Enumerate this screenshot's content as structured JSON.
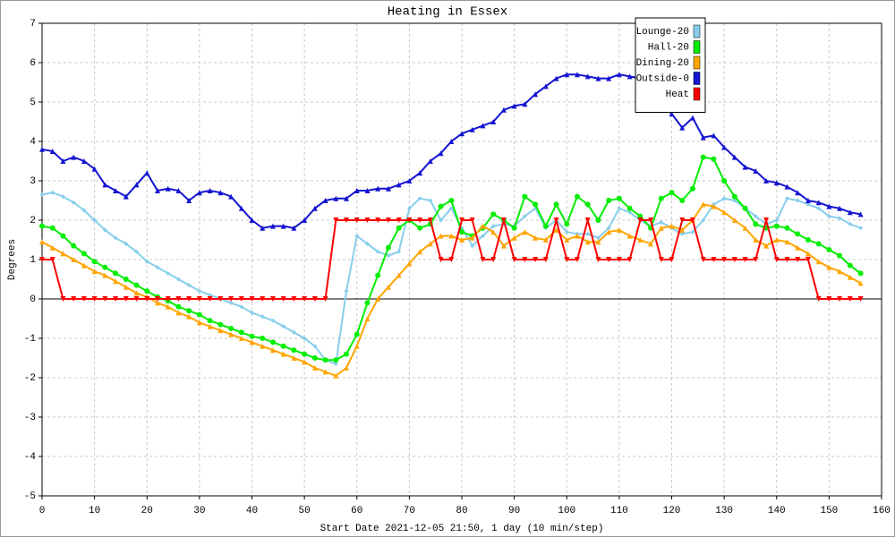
{
  "chart_data": {
    "type": "line",
    "title": "Heating in Essex",
    "x_label": "Start Date 2021-12-05 21:50, 1 day (10 min/step)",
    "y_label": "Degrees",
    "xlim": [
      0,
      160
    ],
    "xticks": [
      0,
      10,
      20,
      30,
      40,
      50,
      60,
      70,
      80,
      90,
      100,
      110,
      120,
      130,
      140,
      150,
      160
    ],
    "ylim": [
      -5,
      7
    ],
    "yticks": [
      -5,
      -4,
      -3,
      -2,
      -1,
      0,
      1,
      2,
      3,
      4,
      5,
      6,
      7
    ],
    "grid": true,
    "legend": "top-right",
    "x": [
      0,
      2,
      4,
      6,
      8,
      10,
      12,
      14,
      16,
      18,
      20,
      22,
      24,
      26,
      28,
      30,
      32,
      34,
      36,
      38,
      40,
      42,
      44,
      46,
      48,
      50,
      52,
      54,
      56,
      58,
      60,
      62,
      64,
      66,
      68,
      70,
      72,
      74,
      76,
      78,
      80,
      82,
      84,
      86,
      88,
      90,
      92,
      94,
      96,
      98,
      100,
      102,
      104,
      106,
      108,
      110,
      112,
      114,
      116,
      118,
      120,
      122,
      124,
      126,
      128,
      130,
      132,
      134,
      136,
      138,
      140,
      142,
      144,
      146,
      148,
      150,
      152,
      154,
      156
    ],
    "series": [
      {
        "name": "Lounge-20",
        "color": "#87ceeb",
        "marker": "diamond",
        "values": [
          2.65,
          2.7,
          2.6,
          2.45,
          2.25,
          2.0,
          1.75,
          1.55,
          1.4,
          1.2,
          0.95,
          0.8,
          0.65,
          0.5,
          0.35,
          0.2,
          0.1,
          0.0,
          -0.1,
          -0.2,
          -0.35,
          -0.45,
          -0.55,
          -0.7,
          -0.85,
          -1.0,
          -1.2,
          -1.55,
          -1.65,
          0.2,
          1.6,
          1.4,
          1.2,
          1.1,
          1.2,
          2.3,
          2.55,
          2.5,
          2.0,
          2.3,
          1.8,
          1.35,
          1.6,
          1.85,
          1.9,
          1.85,
          2.1,
          2.3,
          1.8,
          2.0,
          1.7,
          1.65,
          1.65,
          1.55,
          1.8,
          2.3,
          2.2,
          2.0,
          1.85,
          1.95,
          1.8,
          1.65,
          1.7,
          2.0,
          2.4,
          2.55,
          2.5,
          2.3,
          2.1,
          1.9,
          2.0,
          2.55,
          2.5,
          2.4,
          2.3,
          2.1,
          2.05,
          1.9,
          1.8
        ]
      },
      {
        "name": "Hall-20",
        "color": "#00ee00",
        "marker": "circle",
        "values": [
          1.85,
          1.8,
          1.6,
          1.35,
          1.15,
          0.95,
          0.8,
          0.65,
          0.5,
          0.35,
          0.2,
          0.05,
          -0.05,
          -0.2,
          -0.3,
          -0.4,
          -0.55,
          -0.65,
          -0.75,
          -0.85,
          -0.95,
          -1.0,
          -1.1,
          -1.2,
          -1.3,
          -1.4,
          -1.5,
          -1.55,
          -1.55,
          -1.4,
          -0.9,
          -0.1,
          0.6,
          1.3,
          1.8,
          2.0,
          1.8,
          1.9,
          2.35,
          2.5,
          1.7,
          1.6,
          1.8,
          2.15,
          2.0,
          1.8,
          2.6,
          2.4,
          1.85,
          2.4,
          1.9,
          2.6,
          2.4,
          2.0,
          2.5,
          2.55,
          2.3,
          2.1,
          1.8,
          2.55,
          2.7,
          2.5,
          2.8,
          3.6,
          3.55,
          3.0,
          2.6,
          2.3,
          1.9,
          1.8,
          1.85,
          1.8,
          1.65,
          1.5,
          1.4,
          1.25,
          1.1,
          0.85,
          0.65
        ]
      },
      {
        "name": "Dining-20",
        "color": "#ffa500",
        "marker": "triangle",
        "values": [
          1.45,
          1.3,
          1.15,
          1.0,
          0.85,
          0.7,
          0.6,
          0.45,
          0.3,
          0.15,
          0.05,
          -0.1,
          -0.2,
          -0.35,
          -0.45,
          -0.6,
          -0.7,
          -0.8,
          -0.9,
          -1.0,
          -1.1,
          -1.2,
          -1.3,
          -1.4,
          -1.5,
          -1.6,
          -1.75,
          -1.85,
          -1.95,
          -1.75,
          -1.2,
          -0.5,
          0.0,
          0.3,
          0.6,
          0.9,
          1.2,
          1.4,
          1.6,
          1.6,
          1.5,
          1.55,
          1.85,
          1.7,
          1.35,
          1.55,
          1.7,
          1.55,
          1.5,
          1.75,
          1.5,
          1.6,
          1.45,
          1.45,
          1.7,
          1.75,
          1.6,
          1.5,
          1.4,
          1.8,
          1.85,
          1.75,
          2.0,
          2.4,
          2.35,
          2.2,
          2.0,
          1.8,
          1.5,
          1.35,
          1.5,
          1.45,
          1.3,
          1.15,
          0.95,
          0.8,
          0.7,
          0.55,
          0.4
        ]
      },
      {
        "name": "Outside-0",
        "color": "#1414d2",
        "marker": "triangle",
        "values": [
          3.8,
          3.75,
          3.5,
          3.6,
          3.5,
          3.3,
          2.9,
          2.75,
          2.6,
          2.9,
          3.2,
          2.75,
          2.8,
          2.75,
          2.5,
          2.7,
          2.75,
          2.7,
          2.6,
          2.3,
          2.0,
          1.8,
          1.85,
          1.85,
          1.8,
          2.0,
          2.3,
          2.5,
          2.55,
          2.55,
          2.75,
          2.75,
          2.8,
          2.8,
          2.9,
          3.0,
          3.2,
          3.5,
          3.7,
          4.0,
          4.2,
          4.3,
          4.4,
          4.5,
          4.8,
          4.9,
          4.95,
          5.2,
          5.4,
          5.6,
          5.7,
          5.7,
          5.65,
          5.6,
          5.6,
          5.7,
          5.65,
          5.6,
          5.3,
          5.0,
          4.7,
          4.35,
          4.6,
          4.1,
          4.15,
          3.85,
          3.6,
          3.35,
          3.25,
          3.0,
          2.95,
          2.85,
          2.7,
          2.5,
          2.45,
          2.35,
          2.3,
          2.2,
          2.15
        ]
      },
      {
        "name": "Heat",
        "color": "#ff0000",
        "marker": "triangle-down",
        "values": [
          1,
          1,
          0,
          0,
          0,
          0,
          0,
          0,
          0,
          0,
          0,
          0,
          0,
          0,
          0,
          0,
          0,
          0,
          0,
          0,
          0,
          0,
          0,
          0,
          0,
          0,
          0,
          0,
          2,
          2,
          2,
          2,
          2,
          2,
          2,
          2,
          2,
          2,
          1,
          1,
          2,
          2,
          1,
          1,
          2,
          1,
          1,
          1,
          1,
          2,
          1,
          1,
          2,
          1,
          1,
          1,
          1,
          2,
          2,
          1,
          1,
          2,
          2,
          1,
          1,
          1,
          1,
          1,
          1,
          2,
          1,
          1,
          1,
          1,
          0,
          0,
          0,
          0,
          0
        ]
      }
    ]
  }
}
